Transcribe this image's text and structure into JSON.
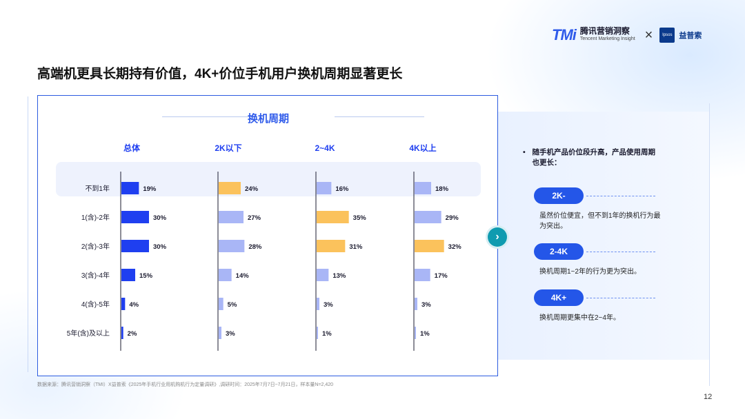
{
  "header": {
    "tmi_mark": "TMi",
    "tmi_cn": "腾讯营销洞察",
    "tmi_en": "Tencent Marketing Insight",
    "separator": "×",
    "ipsos_box": "Ipsos",
    "ipsos_cn": "益普索"
  },
  "page_title": "高端机更具长期持有价值，4K+价位手机用户换机周期显著更长",
  "panel_title": "换机周期",
  "chart_data": {
    "type": "bar",
    "orientation": "horizontal",
    "title": "换机周期",
    "categories": [
      "不到1年",
      "1(含)-2年",
      "2(含)-3年",
      "3(含)-4年",
      "4(含)-5年",
      "5年(含)及以上"
    ],
    "unit": "%",
    "series": [
      {
        "name": "总体",
        "values": [
          19,
          30,
          30,
          15,
          4,
          2
        ]
      },
      {
        "name": "2K以下",
        "values": [
          24,
          27,
          28,
          14,
          5,
          3
        ]
      },
      {
        "name": "2~4K",
        "values": [
          16,
          35,
          31,
          13,
          3,
          1
        ]
      },
      {
        "name": "4K以上",
        "values": [
          18,
          29,
          32,
          17,
          3,
          1
        ]
      }
    ],
    "highlight": {
      "总体": [
        false,
        false,
        false,
        false,
        false,
        false
      ],
      "2K以下": [
        true,
        false,
        false,
        false,
        false,
        false
      ],
      "2~4K": [
        false,
        true,
        true,
        false,
        false,
        false
      ],
      "4K以上": [
        false,
        false,
        true,
        false,
        false,
        false
      ]
    },
    "colors": {
      "overall": "#1f3ff0",
      "normal": "#a9b6f6",
      "highlight": "#fbc25c"
    },
    "xlim": [
      0,
      35
    ]
  },
  "right": {
    "bullet_mark": "•",
    "bullet": "随手机产品价位段升高，产品使用周期也更长：",
    "items": [
      {
        "tag": "2K-",
        "desc": "虽然价位便宜，但不到1年的换机行为最为突出。"
      },
      {
        "tag": "2-4K",
        "desc": "换机周期1~2年的行为更为突出。"
      },
      {
        "tag": "4K+",
        "desc": "换机周期更集中在2~4年。"
      }
    ]
  },
  "arrow": "›",
  "footnote": "数据来源：腾讯营销洞察（TMI）X益普索《2025年手机行业用机购机行为定量调研》,调研时间：2025年7月7日~7月21日，样本量N=2,420",
  "page_number": "12"
}
